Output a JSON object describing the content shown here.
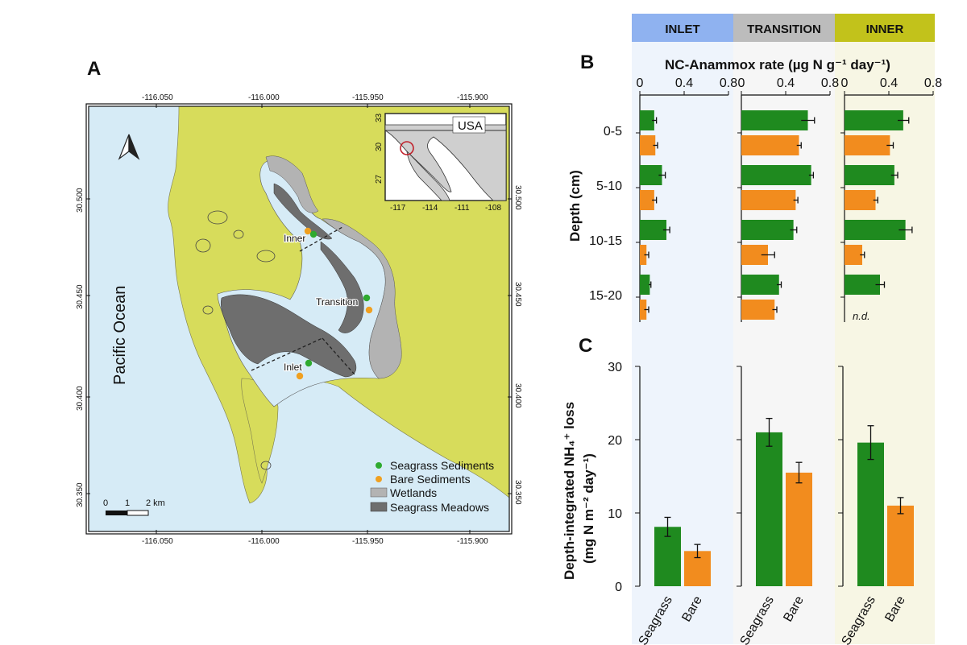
{
  "panel_labels": {
    "a": "A",
    "b": "B",
    "c": "C"
  },
  "regions": [
    {
      "name": "INLET",
      "header_color": "#8fb2f0",
      "bg_color": "#eef4fc"
    },
    {
      "name": "TRANSITION",
      "header_color": "#bcbcbc",
      "bg_color": "#f6f6f6"
    },
    {
      "name": "INNER",
      "header_color": "#c2c21b",
      "bg_color": "#f7f6e4"
    }
  ],
  "map": {
    "lon_ticks": [
      "-116.050",
      "-116.000",
      "-115.950",
      "-115.900"
    ],
    "lat_ticks": [
      "30.500",
      "30.450",
      "30.400",
      "30.350"
    ],
    "ocean_label": "Pacific Ocean",
    "sites": [
      "Inner",
      "Transition",
      "Inlet"
    ],
    "legend": [
      "Seagrass Sediments",
      "Bare Sediments",
      "Wetlands",
      "Seagrass Meadows"
    ],
    "scale": [
      "0",
      "1",
      "2 km"
    ],
    "inset": {
      "country": "USA",
      "x_ticks": [
        "-117",
        "-114",
        "-111",
        "-108"
      ],
      "y_ticks": [
        "33",
        "30",
        "27"
      ]
    },
    "colors": {
      "ocean": "#d6ebf6",
      "land": "#d7dc5b",
      "wetland": "#b3b3b3",
      "meadow": "#6e6e6e",
      "seagrass": "#2faa2f",
      "bare": "#f0a020"
    }
  },
  "chart_data": [
    {
      "type": "bar",
      "orientation": "horizontal",
      "title": "NC-Anammox rate",
      "units": "(µg N g⁻¹ day⁻¹)",
      "xlim": [
        0,
        0.8
      ],
      "xticks": [
        "0",
        "0.4",
        "0.8"
      ],
      "ylabel": "Depth (cm)",
      "categories": [
        "0-5",
        "5-10",
        "10-15",
        "15-20"
      ],
      "series_names": [
        "Seagrass",
        "Bare"
      ],
      "colors": {
        "Seagrass": "#1f8a1f",
        "Bare": "#f28c1e"
      },
      "panels": [
        {
          "region": "INLET",
          "seagrass": [
            0.13,
            0.2,
            0.24,
            0.09
          ],
          "seagrass_err": [
            0.02,
            0.03,
            0.03,
            0.01
          ],
          "bare": [
            0.14,
            0.13,
            0.06,
            0.06
          ],
          "bare_err": [
            0.02,
            0.02,
            0.02,
            0.02
          ]
        },
        {
          "region": "TRANSITION",
          "seagrass": [
            0.6,
            0.63,
            0.47,
            0.34
          ],
          "seagrass_err": [
            0.06,
            0.02,
            0.03,
            0.02
          ],
          "bare": [
            0.52,
            0.49,
            0.24,
            0.3
          ],
          "bare_err": [
            0.02,
            0.02,
            0.06,
            0.02
          ]
        },
        {
          "region": "INNER",
          "seagrass": [
            0.53,
            0.45,
            0.55,
            0.32
          ],
          "seagrass_err": [
            0.05,
            0.03,
            0.06,
            0.04
          ],
          "bare": [
            0.41,
            0.28,
            0.16,
            null
          ],
          "bare_err": [
            0.03,
            0.02,
            0.02,
            null
          ]
        }
      ],
      "annotation": "n.d."
    },
    {
      "type": "bar",
      "ylabel": "Depth-integrated NH₄⁺ loss",
      "ylabel_units": "(mg N m⁻² day⁻¹)",
      "ylim": [
        0,
        30
      ],
      "yticks": [
        "0",
        "10",
        "20",
        "30"
      ],
      "categories": [
        "Seagrass",
        "Bare"
      ],
      "panels": [
        {
          "region": "INLET",
          "values": [
            8.1,
            4.8
          ],
          "errors": [
            1.3,
            0.9
          ]
        },
        {
          "region": "TRANSITION",
          "values": [
            21.0,
            15.5
          ],
          "errors": [
            1.9,
            1.4
          ]
        },
        {
          "region": "INNER",
          "values": [
            19.6,
            11.0
          ],
          "errors": [
            2.3,
            1.1
          ]
        }
      ]
    }
  ]
}
